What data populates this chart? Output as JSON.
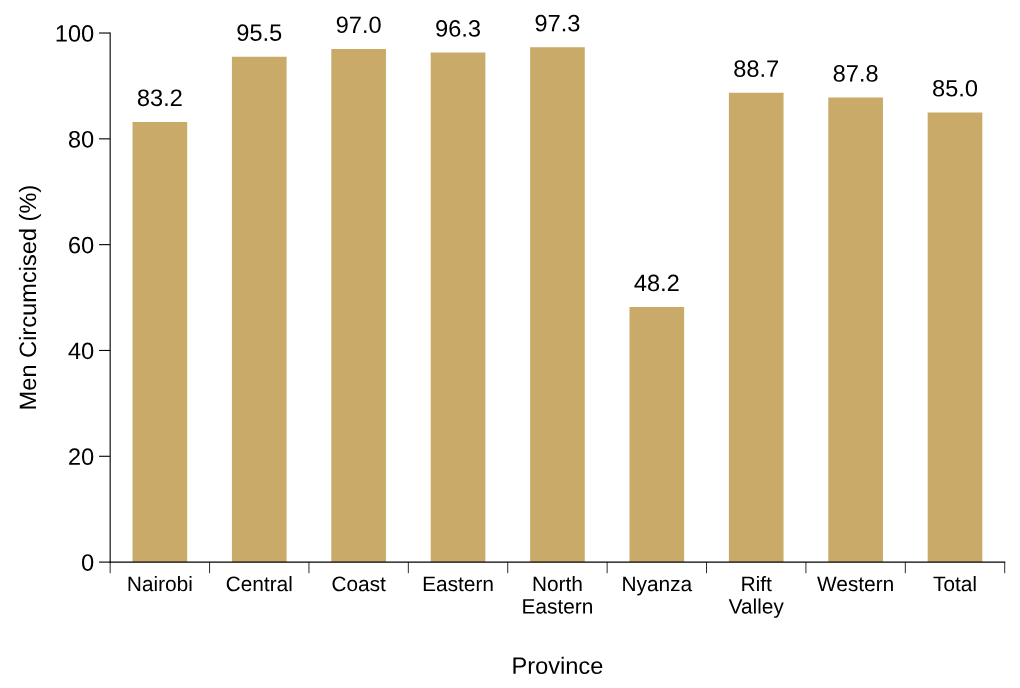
{
  "chart_data": {
    "type": "bar",
    "xlabel": "Province",
    "ylabel": "Men Circumcised (%)",
    "categories": [
      "Nairobi",
      "Central",
      "Coast",
      "Eastern",
      "North\nEastern",
      "Nyanza",
      "Rift\nValley",
      "Western",
      "Total"
    ],
    "values": [
      83.2,
      95.5,
      97.0,
      96.3,
      97.3,
      48.2,
      88.7,
      87.8,
      85.0
    ],
    "value_labels": [
      "83.2",
      "95.5",
      "97.0",
      "96.3",
      "97.3",
      "48.2",
      "88.7",
      "87.8",
      "85.0"
    ],
    "color": "#c9aa68",
    "ylim": [
      0,
      100
    ],
    "yticks": [
      0,
      20,
      40,
      60,
      80,
      100
    ],
    "grid": false
  }
}
